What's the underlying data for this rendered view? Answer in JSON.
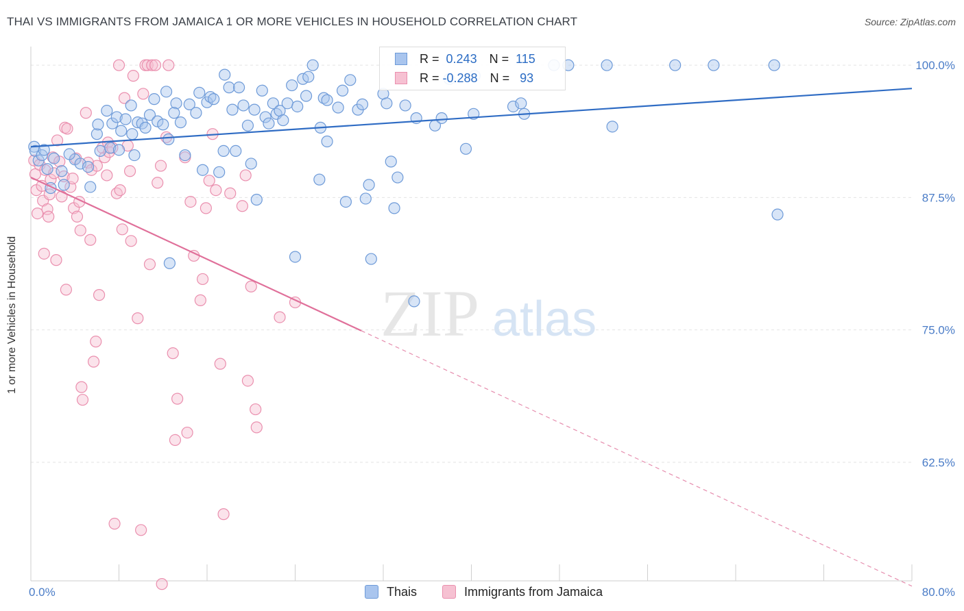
{
  "title": "THAI VS IMMIGRANTS FROM JAMAICA 1 OR MORE VEHICLES IN HOUSEHOLD CORRELATION CHART",
  "source": "Source: ZipAtlas.com",
  "watermark": {
    "zip": "ZIP",
    "atlas": "atlas"
  },
  "colors": {
    "thais_fill": "#a9c5ee",
    "thais_stroke": "#6d9ad8",
    "thais_line": "#2f6cc4",
    "jamaica_fill": "#f6c1d2",
    "jamaica_stroke": "#ea8fae",
    "jamaica_line": "#e0709a",
    "axis_text": "#4a7cc7",
    "grid": "#e4e4e4"
  },
  "legend": {
    "rows": [
      {
        "r_label": "R =",
        "r_value": " 0.243",
        "n_label": "N =",
        "n_value": "115"
      },
      {
        "r_label": "R =",
        "r_value": "-0.288",
        "n_label": "N =",
        "n_value": " 93"
      }
    ]
  },
  "bottom_legend": {
    "thais": "Thais",
    "jamaica": "Immigrants from Jamaica"
  },
  "chart_data": {
    "type": "scatter",
    "title": "THAI VS IMMIGRANTS FROM JAMAICA 1 OR MORE VEHICLES IN HOUSEHOLD CORRELATION CHART",
    "xlabel": "",
    "ylabel": "1 or more Vehicles in Household",
    "xlim": [
      0,
      80
    ],
    "ylim": [
      51.3,
      101.5
    ],
    "x_tick_labels": [
      "0.0%",
      "80.0%"
    ],
    "y_ticks": [
      {
        "value": 100.0,
        "label": "100.0%"
      },
      {
        "value": 87.5,
        "label": "87.5%"
      },
      {
        "value": 75.0,
        "label": "75.0%"
      },
      {
        "value": 62.5,
        "label": "62.5%"
      }
    ],
    "grid": true,
    "legend_position": "top-center",
    "series": [
      {
        "name": "Thais",
        "r": 0.243,
        "n": 115,
        "trend": {
          "x": [
            0,
            80
          ],
          "y": [
            92.3,
            97.8
          ]
        },
        "points": [
          [
            0.3,
            92.3
          ],
          [
            0.4,
            91.9
          ],
          [
            0.7,
            91.0
          ],
          [
            1.0,
            91.5
          ],
          [
            1.2,
            92.0
          ],
          [
            1.5,
            90.2
          ],
          [
            1.8,
            88.4
          ],
          [
            2.1,
            91.2
          ],
          [
            2.8,
            90.0
          ],
          [
            3.0,
            88.7
          ],
          [
            4.0,
            91.1
          ],
          [
            4.5,
            90.7
          ],
          [
            5.2,
            90.4
          ],
          [
            5.4,
            88.5
          ],
          [
            6.0,
            93.5
          ],
          [
            6.3,
            91.9
          ],
          [
            6.9,
            95.7
          ],
          [
            7.2,
            92.2
          ],
          [
            7.4,
            94.5
          ],
          [
            7.8,
            95.1
          ],
          [
            8.0,
            92.0
          ],
          [
            8.2,
            93.8
          ],
          [
            8.6,
            94.9
          ],
          [
            9.1,
            96.2
          ],
          [
            9.4,
            91.5
          ],
          [
            9.7,
            94.6
          ],
          [
            10.1,
            94.5
          ],
          [
            10.4,
            94.1
          ],
          [
            10.8,
            95.3
          ],
          [
            11.2,
            96.8
          ],
          [
            11.5,
            94.7
          ],
          [
            12.0,
            94.4
          ],
          [
            12.3,
            97.5
          ],
          [
            12.5,
            93.0
          ],
          [
            12.6,
            81.3
          ],
          [
            13.2,
            96.4
          ],
          [
            13.6,
            94.6
          ],
          [
            14.0,
            91.5
          ],
          [
            14.4,
            96.3
          ],
          [
            15.0,
            95.5
          ],
          [
            15.3,
            97.4
          ],
          [
            15.6,
            90.1
          ],
          [
            16.0,
            96.5
          ],
          [
            16.3,
            97.0
          ],
          [
            16.6,
            96.8
          ],
          [
            17.1,
            89.9
          ],
          [
            17.5,
            91.9
          ],
          [
            18.0,
            97.9
          ],
          [
            18.3,
            95.8
          ],
          [
            18.6,
            91.9
          ],
          [
            18.9,
            97.9
          ],
          [
            19.3,
            96.2
          ],
          [
            19.7,
            94.3
          ],
          [
            20.0,
            90.7
          ],
          [
            20.3,
            95.8
          ],
          [
            20.5,
            87.3
          ],
          [
            21.0,
            97.6
          ],
          [
            21.3,
            95.1
          ],
          [
            21.6,
            94.5
          ],
          [
            22.0,
            96.4
          ],
          [
            22.3,
            95.4
          ],
          [
            22.6,
            95.7
          ],
          [
            22.9,
            94.8
          ],
          [
            23.3,
            96.4
          ],
          [
            23.7,
            98.1
          ],
          [
            24.0,
            81.9
          ],
          [
            24.2,
            96.1
          ],
          [
            24.7,
            98.7
          ],
          [
            25.0,
            97.1
          ],
          [
            25.2,
            98.9
          ],
          [
            25.6,
            100.0
          ],
          [
            26.2,
            89.2
          ],
          [
            26.3,
            94.1
          ],
          [
            26.6,
            96.9
          ],
          [
            26.9,
            92.8
          ],
          [
            27.9,
            96.0
          ],
          [
            28.3,
            97.6
          ],
          [
            28.6,
            87.1
          ],
          [
            29.0,
            98.6
          ],
          [
            29.7,
            95.8
          ],
          [
            30.1,
            96.3
          ],
          [
            30.4,
            87.4
          ],
          [
            30.7,
            88.7
          ],
          [
            30.9,
            81.7
          ],
          [
            32.0,
            97.3
          ],
          [
            32.3,
            96.4
          ],
          [
            32.7,
            90.9
          ],
          [
            33.0,
            86.5
          ],
          [
            33.3,
            89.4
          ],
          [
            34.0,
            96.2
          ],
          [
            34.8,
            77.7
          ],
          [
            35.0,
            95.0
          ],
          [
            36.7,
            94.3
          ],
          [
            37.3,
            95.0
          ],
          [
            38.0,
            98.7
          ],
          [
            39.5,
            92.1
          ],
          [
            40.2,
            95.4
          ],
          [
            40.3,
            99.0
          ],
          [
            43.8,
            96.1
          ],
          [
            44.5,
            96.4
          ],
          [
            44.8,
            95.4
          ],
          [
            47.5,
            100.0
          ],
          [
            48.8,
            100.0
          ],
          [
            52.3,
            100.0
          ],
          [
            52.8,
            94.2
          ],
          [
            67.5,
            100.0
          ],
          [
            67.8,
            85.9
          ],
          [
            58.5,
            100.0
          ],
          [
            62.0,
            100.0
          ],
          [
            26.9,
            96.7
          ],
          [
            13.0,
            95.5
          ],
          [
            9.2,
            93.5
          ],
          [
            6.1,
            94.4
          ],
          [
            3.5,
            91.6
          ],
          [
            17.6,
            99.1
          ]
        ]
      },
      {
        "name": "Immigrants from Jamaica",
        "r": -0.288,
        "n": 93,
        "trend": {
          "x": [
            0,
            80
          ],
          "y": [
            89.4,
            50.8
          ],
          "solid_to_x": 30
        },
        "points": [
          [
            0.3,
            91.0
          ],
          [
            0.4,
            89.7
          ],
          [
            0.5,
            88.2
          ],
          [
            0.6,
            86.0
          ],
          [
            0.8,
            90.6
          ],
          [
            1.0,
            88.6
          ],
          [
            1.1,
            87.2
          ],
          [
            1.2,
            82.2
          ],
          [
            1.3,
            90.1
          ],
          [
            1.5,
            86.4
          ],
          [
            1.6,
            85.7
          ],
          [
            1.7,
            87.8
          ],
          [
            1.8,
            89.2
          ],
          [
            2.0,
            91.3
          ],
          [
            2.1,
            89.8
          ],
          [
            2.3,
            81.6
          ],
          [
            2.4,
            92.9
          ],
          [
            2.6,
            90.9
          ],
          [
            2.8,
            87.6
          ],
          [
            3.0,
            89.5
          ],
          [
            3.1,
            94.1
          ],
          [
            3.2,
            78.8
          ],
          [
            3.3,
            94.0
          ],
          [
            3.6,
            88.5
          ],
          [
            3.8,
            89.3
          ],
          [
            3.9,
            86.5
          ],
          [
            4.1,
            91.2
          ],
          [
            4.2,
            85.7
          ],
          [
            4.4,
            87.1
          ],
          [
            4.5,
            84.4
          ],
          [
            4.6,
            69.6
          ],
          [
            4.7,
            68.4
          ],
          [
            5.0,
            95.5
          ],
          [
            5.2,
            90.8
          ],
          [
            5.4,
            83.5
          ],
          [
            5.5,
            90.1
          ],
          [
            5.7,
            72.0
          ],
          [
            5.9,
            73.9
          ],
          [
            6.0,
            90.5
          ],
          [
            6.2,
            78.3
          ],
          [
            6.5,
            92.2
          ],
          [
            6.7,
            91.3
          ],
          [
            6.9,
            89.6
          ],
          [
            7.0,
            92.7
          ],
          [
            7.1,
            91.8
          ],
          [
            7.4,
            92.2
          ],
          [
            7.6,
            56.7
          ],
          [
            7.8,
            87.9
          ],
          [
            8.0,
            100.0
          ],
          [
            8.1,
            88.2
          ],
          [
            8.3,
            84.5
          ],
          [
            8.5,
            96.9
          ],
          [
            8.8,
            92.4
          ],
          [
            9.0,
            90.0
          ],
          [
            9.1,
            83.4
          ],
          [
            9.3,
            99.0
          ],
          [
            9.7,
            76.1
          ],
          [
            10.0,
            56.1
          ],
          [
            10.2,
            97.3
          ],
          [
            10.4,
            100.0
          ],
          [
            10.6,
            100.0
          ],
          [
            10.8,
            81.2
          ],
          [
            11.0,
            100.0
          ],
          [
            11.3,
            100.0
          ],
          [
            11.5,
            88.9
          ],
          [
            11.8,
            90.5
          ],
          [
            11.9,
            51.0
          ],
          [
            12.3,
            93.2
          ],
          [
            12.5,
            100.0
          ],
          [
            12.9,
            72.8
          ],
          [
            13.1,
            64.6
          ],
          [
            13.3,
            68.5
          ],
          [
            14.0,
            91.3
          ],
          [
            14.2,
            65.3
          ],
          [
            14.5,
            87.1
          ],
          [
            14.8,
            82.0
          ],
          [
            15.4,
            77.8
          ],
          [
            15.6,
            79.8
          ],
          [
            15.9,
            86.5
          ],
          [
            16.2,
            89.1
          ],
          [
            16.5,
            93.5
          ],
          [
            16.8,
            88.2
          ],
          [
            17.2,
            71.8
          ],
          [
            17.5,
            57.6
          ],
          [
            18.1,
            87.9
          ],
          [
            19.2,
            86.7
          ],
          [
            19.5,
            89.6
          ],
          [
            19.7,
            70.2
          ],
          [
            20.0,
            79.1
          ],
          [
            20.4,
            67.5
          ],
          [
            20.5,
            65.8
          ],
          [
            22.6,
            76.2
          ],
          [
            24.0,
            77.6
          ]
        ]
      }
    ]
  }
}
